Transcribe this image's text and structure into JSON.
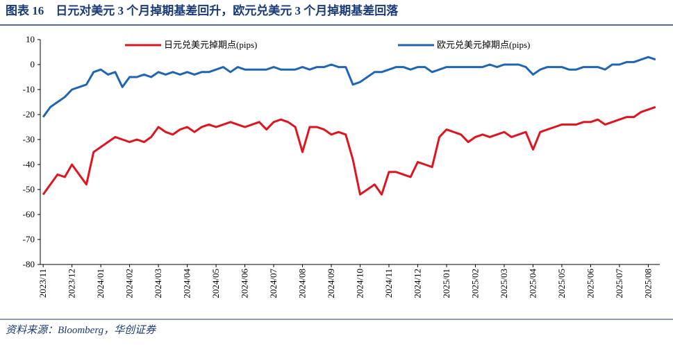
{
  "chart_data": {
    "type": "line",
    "title": "图表 16　日元对美元 3 个月掉期基差回升，欧元兑美元 3 个月掉期基差回落",
    "source": "资料来源：Bloomberg，华创证券",
    "x": [
      0,
      0.25,
      0.5,
      0.75,
      1,
      1.25,
      1.5,
      1.75,
      2,
      2.25,
      2.5,
      2.75,
      3,
      3.25,
      3.5,
      3.75,
      4,
      4.25,
      4.5,
      4.75,
      5,
      5.25,
      5.5,
      5.75,
      6,
      6.25,
      6.5,
      6.75,
      7,
      7.25,
      7.5,
      7.75,
      8,
      8.25,
      8.5,
      8.75,
      9,
      9.25,
      9.5,
      9.75,
      10,
      10.25,
      10.5,
      10.75,
      11,
      11.25,
      11.5,
      11.75,
      12,
      12.25,
      12.5,
      12.75,
      13,
      13.25,
      13.5,
      13.75,
      14,
      14.25,
      14.5,
      14.75,
      15,
      15.25,
      15.5,
      15.75,
      16,
      16.25,
      16.5,
      16.75,
      17,
      17.25,
      17.5,
      17.75,
      18,
      18.25,
      18.5,
      18.75,
      19,
      19.25,
      19.5,
      19.75,
      20,
      20.25,
      20.5,
      20.75,
      21,
      21.25
    ],
    "series": [
      {
        "name": "日元兑美元掉期点(pips)",
        "color": "#e0141e",
        "values": [
          -52,
          -48,
          -44,
          -45,
          -40,
          -44,
          -48,
          -35,
          -33,
          -31,
          -29,
          -30,
          -31,
          -30,
          -31,
          -29,
          -25,
          -27,
          -28,
          -26,
          -25,
          -27,
          -25,
          -24,
          -25,
          -24,
          -23,
          -24,
          -25,
          -24,
          -23,
          -26,
          -23,
          -22,
          -23,
          -25,
          -35,
          -25,
          -25,
          -26,
          -28,
          -27,
          -28,
          -38,
          -52,
          -50,
          -48,
          -52,
          -43,
          -43,
          -44,
          -45,
          -39,
          -40,
          -41,
          -29,
          -26,
          -27,
          -28,
          -31,
          -29,
          -28,
          -29,
          -28,
          -27,
          -29,
          -28,
          -27,
          -34,
          -27,
          -26,
          -25,
          -24,
          -24,
          -24,
          -23,
          -23,
          -22,
          -24,
          -23,
          -22,
          -21,
          -21,
          -19,
          -18,
          -17
        ]
      },
      {
        "name": "欧元兑美元掉期点(pips)",
        "color": "#1f65b5",
        "values": [
          -21,
          -17,
          -15,
          -13,
          -10,
          -9,
          -8,
          -3,
          -2,
          -4,
          -3,
          -9,
          -5,
          -5,
          -4,
          -5,
          -3,
          -4,
          -3,
          -4,
          -3,
          -4,
          -3,
          -3,
          -2,
          -1,
          -3,
          -1,
          -2,
          -2,
          -2,
          -2,
          -1,
          -2,
          -2,
          -2,
          -1,
          -2,
          -1,
          -1,
          0,
          -1,
          -1,
          -8,
          -7,
          -5,
          -3,
          -3,
          -2,
          -1,
          -1,
          -2,
          -1,
          -1,
          -3,
          -2,
          -1,
          -1,
          -1,
          -1,
          -1,
          -1,
          0,
          -1,
          0,
          0,
          0,
          -1,
          -4,
          -2,
          -1,
          -1,
          -1,
          -2,
          -2,
          -1,
          -1,
          -1,
          -2,
          0,
          0,
          1,
          1,
          2,
          3,
          2
        ]
      }
    ],
    "xlim": [
      -0.1,
      21.4
    ],
    "xticks": [
      {
        "value": 0,
        "label": "2023/11"
      },
      {
        "value": 1,
        "label": "2023/12"
      },
      {
        "value": 2,
        "label": "2024/01"
      },
      {
        "value": 3,
        "label": "2024/02"
      },
      {
        "value": 4,
        "label": "2024/03"
      },
      {
        "value": 5,
        "label": "2024/04"
      },
      {
        "value": 6,
        "label": "2024/05"
      },
      {
        "value": 7,
        "label": "2024/06"
      },
      {
        "value": 8,
        "label": "2024/07"
      },
      {
        "value": 9,
        "label": "2024/08"
      },
      {
        "value": 10,
        "label": "2024/09"
      },
      {
        "value": 11,
        "label": "2024/10"
      },
      {
        "value": 12,
        "label": "2024/11"
      },
      {
        "value": 13,
        "label": "2024/12"
      },
      {
        "value": 14,
        "label": "2025/01"
      },
      {
        "value": 15,
        "label": "2025/02"
      },
      {
        "value": 16,
        "label": "2025/03"
      },
      {
        "value": 17,
        "label": "2025/04"
      },
      {
        "value": 18,
        "label": "2025/05"
      },
      {
        "value": 19,
        "label": "2025/06"
      },
      {
        "value": 20,
        "label": "2025/07"
      },
      {
        "value": 21,
        "label": "2025/08"
      }
    ],
    "ylim": [
      -80,
      10
    ],
    "yticks": [
      10,
      0,
      -10,
      -20,
      -30,
      -40,
      -50,
      -60,
      -70,
      -80
    ],
    "grid": false
  }
}
